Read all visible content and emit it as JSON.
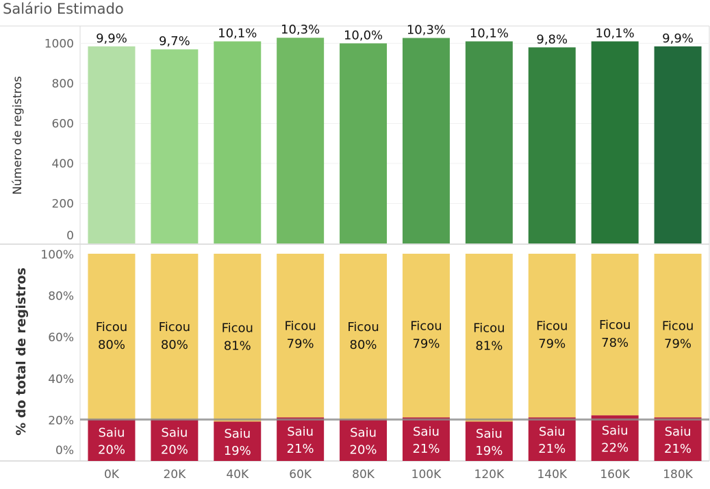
{
  "title": "Salário Estimado",
  "chart_data": [
    {
      "type": "bar",
      "ylabel": "Número de registros",
      "ylim": [
        0,
        1080
      ],
      "yticks": [
        0,
        200,
        400,
        600,
        800,
        1000
      ],
      "grid": true,
      "categories": [
        "0K",
        "20K",
        "40K",
        "60K",
        "80K",
        "100K",
        "120K",
        "140K",
        "160K",
        "180K"
      ],
      "values": [
        985,
        970,
        1010,
        1028,
        1000,
        1027,
        1010,
        980,
        1010,
        985
      ],
      "labels": [
        "9,9%",
        "9,7%",
        "10,1%",
        "10,3%",
        "10,0%",
        "10,3%",
        "10,1%",
        "9,8%",
        "10,1%",
        "9,9%"
      ],
      "colors": [
        "#b3dfa6",
        "#98d687",
        "#84ca73",
        "#72ba64",
        "#62ad5a",
        "#529f51",
        "#449149",
        "#358340",
        "#287739",
        "#226b3c"
      ]
    },
    {
      "type": "bar",
      "stacked": true,
      "ylabel": "% do total de registros",
      "ylim": [
        0,
        100
      ],
      "yticks": [
        "0%",
        "20%",
        "40%",
        "60%",
        "80%",
        "100%"
      ],
      "reference_line": 20,
      "categories": [
        "0K",
        "20K",
        "40K",
        "60K",
        "80K",
        "100K",
        "120K",
        "140K",
        "160K",
        "180K"
      ],
      "series": [
        {
          "name": "Saiu",
          "color": "#b71c3f",
          "values": [
            20,
            20,
            19,
            21,
            20,
            21,
            19,
            21,
            22,
            21
          ],
          "labels": [
            "20%",
            "20%",
            "19%",
            "21%",
            "20%",
            "21%",
            "19%",
            "21%",
            "22%",
            "21%"
          ]
        },
        {
          "name": "Ficou",
          "color": "#f2cf67",
          "values": [
            80,
            80,
            81,
            79,
            80,
            79,
            81,
            79,
            78,
            79
          ],
          "labels": [
            "80%",
            "80%",
            "81%",
            "79%",
            "80%",
            "79%",
            "81%",
            "79%",
            "78%",
            "79%"
          ]
        }
      ]
    }
  ]
}
